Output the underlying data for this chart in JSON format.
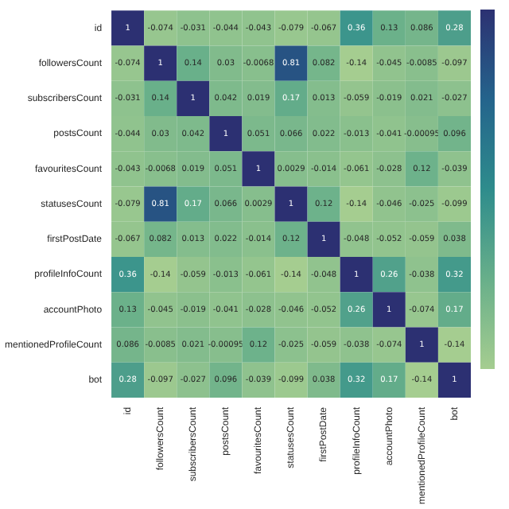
{
  "chart_data": {
    "type": "heatmap",
    "categories": [
      "id",
      "followersCount",
      "subscribersCount",
      "postsCount",
      "favouritesCount",
      "statusesCount",
      "firstPostDate",
      "profileInfoCount",
      "accountPhoto",
      "mentionedProfileCount",
      "bot"
    ],
    "y_categories": [
      "id",
      "followersCount",
      "subscribersCount",
      "postsCount",
      "favouritesCount",
      "statusesCount",
      "firstPostDate",
      "profileInfoCount",
      "accountPhoto",
      "mentionedProfileCount",
      "bot"
    ],
    "cells": [
      [
        1,
        -0.074,
        -0.031,
        -0.044,
        -0.043,
        -0.079,
        -0.067,
        0.36,
        0.13,
        0.086,
        0.28
      ],
      [
        -0.074,
        1,
        0.14,
        0.03,
        -0.0068,
        0.81,
        0.082,
        -0.14,
        -0.045,
        -0.0085,
        -0.097
      ],
      [
        -0.031,
        0.14,
        1,
        0.042,
        0.019,
        0.17,
        0.013,
        -0.059,
        -0.019,
        0.021,
        -0.027
      ],
      [
        -0.044,
        0.03,
        0.042,
        1,
        0.051,
        0.066,
        0.022,
        -0.013,
        -0.041,
        -0.00095,
        0.096
      ],
      [
        -0.043,
        -0.0068,
        0.019,
        0.051,
        1,
        0.0029,
        -0.014,
        -0.061,
        -0.028,
        0.12,
        -0.039
      ],
      [
        -0.079,
        0.81,
        0.17,
        0.066,
        0.0029,
        1,
        0.12,
        -0.14,
        -0.046,
        -0.025,
        -0.099
      ],
      [
        -0.067,
        0.082,
        0.013,
        0.022,
        -0.014,
        0.12,
        1,
        -0.048,
        -0.052,
        -0.059,
        0.038
      ],
      [
        0.36,
        -0.14,
        -0.059,
        -0.013,
        -0.061,
        -0.14,
        -0.048,
        1,
        0.26,
        -0.038,
        0.32
      ],
      [
        0.13,
        -0.045,
        -0.019,
        -0.041,
        -0.028,
        -0.046,
        -0.052,
        0.26,
        1,
        -0.074,
        0.17
      ],
      [
        0.086,
        -0.0085,
        0.021,
        -0.00095,
        0.12,
        -0.025,
        -0.059,
        -0.038,
        -0.074,
        1,
        -0.14
      ],
      [
        0.28,
        -0.097,
        -0.027,
        0.096,
        -0.039,
        -0.099,
        0.038,
        0.32,
        0.17,
        -0.14,
        1
      ]
    ],
    "data_labels": true
  }
}
